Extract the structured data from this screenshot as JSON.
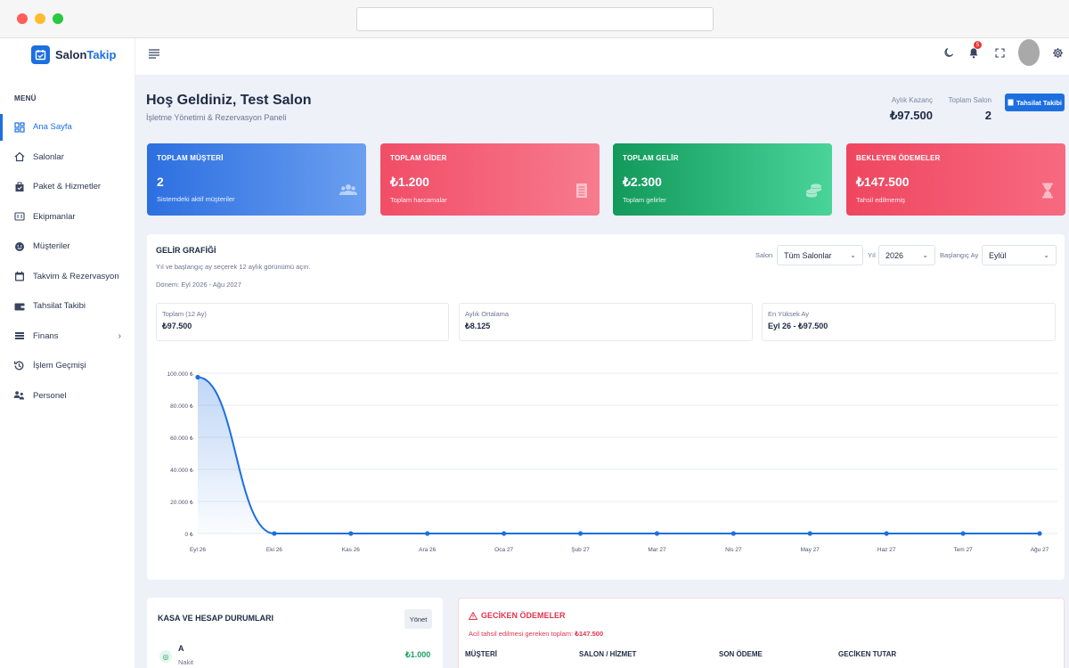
{
  "brand": {
    "name_a": "Salon",
    "name_b": "Takip"
  },
  "sidebar": {
    "heading": "MENÜ",
    "items": [
      {
        "label": "Ana Sayfa",
        "icon": "dashboard-icon",
        "active": true
      },
      {
        "label": "Salonlar",
        "icon": "home-icon"
      },
      {
        "label": "Paket & Hizmetler",
        "icon": "package-icon"
      },
      {
        "label": "Ekipmanlar",
        "icon": "equipment-icon"
      },
      {
        "label": "Müşteriler",
        "icon": "smile-icon"
      },
      {
        "label": "Takvim & Rezervasyon",
        "icon": "calendar-icon"
      },
      {
        "label": "Tahsilat Takibi",
        "icon": "wallet-icon"
      },
      {
        "label": "Finans",
        "icon": "finance-icon",
        "has_submenu": true
      },
      {
        "label": "İşlem Geçmişi",
        "icon": "history-icon"
      },
      {
        "label": "Personel",
        "icon": "users-icon"
      }
    ]
  },
  "topbar": {
    "notification_count": "5"
  },
  "header": {
    "title": "Hoş Geldiniz, Test Salon",
    "subtitle": "İşletme Yönetimi & Rezervasyon Paneli",
    "monthly_label": "Aylık Kazanç",
    "monthly_value": "₺97.500",
    "salons_label": "Toplam Salon",
    "salons_value": "2",
    "button_label": "Tahsilat Takibi"
  },
  "cards": [
    {
      "title": "TOPLAM MÜŞTERİ",
      "value": "2",
      "sub": "Sistemdeki aktif müşteriler",
      "icon": "users-icon"
    },
    {
      "title": "TOPLAM GİDER",
      "value": "₺1.200",
      "sub": "Toplam harcamalar",
      "icon": "receipt-icon"
    },
    {
      "title": "TOPLAM GELİR",
      "value": "₺2.300",
      "sub": "Toplam gelirler",
      "icon": "coins-icon"
    },
    {
      "title": "BEKLEYEN ÖDEMELER",
      "value": "₺147.500",
      "sub": "Tahsil edilmemiş",
      "icon": "hourglass-icon"
    }
  ],
  "income": {
    "title": "GELİR GRAFİĞİ",
    "subtitle": "Yıl ve başlangıç ay seçerek 12 aylık görünümü açın.",
    "range": "Dönem: Eyl 2026 - Ağu 2027",
    "filters": {
      "salon_label": "Salon",
      "salon_value": "Tüm Salonlar",
      "year_label": "Yıl",
      "year_value": "2026",
      "month_label": "Başlangıç Ay",
      "month_value": "Eylül"
    },
    "summary": [
      {
        "label": "Toplam (12 Ay)",
        "value": "₺97.500"
      },
      {
        "label": "Aylık Ortalama",
        "value": "₺8.125"
      },
      {
        "label": "En Yüksek Ay",
        "value": "Eyl 26 - ₺97.500"
      }
    ]
  },
  "chart_data": {
    "type": "area",
    "categories": [
      "Eyl 26",
      "Eki 26",
      "Kas 26",
      "Ara 26",
      "Oca 27",
      "Şub 27",
      "Mar 27",
      "Nis 27",
      "May 27",
      "Haz 27",
      "Tem 27",
      "Ağu 27"
    ],
    "values": [
      97500,
      0,
      0,
      0,
      0,
      0,
      0,
      0,
      0,
      0,
      0,
      0
    ],
    "ylim": [
      0,
      100000
    ],
    "yticks": [
      "0 ₺",
      "20.000 ₺",
      "40.000 ₺",
      "60.000 ₺",
      "80.000 ₺",
      "100.000 ₺"
    ],
    "grid": true,
    "color": "#1d6fe0"
  },
  "accounts": {
    "title": "KASA VE HESAP DURUMLARI",
    "manage_label": "Yönet",
    "items": [
      {
        "name": "A",
        "type": "Nakit",
        "amount": "₺1.000"
      }
    ]
  },
  "overdue": {
    "title": "GECİKEN ÖDEMELER",
    "sub_text": "Acil tahsil edilmesi gereken toplam:",
    "sub_amount": "₺147.500",
    "columns": [
      "MÜŞTERİ",
      "SALON / HİZMET",
      "SON ÖDEME",
      "GECİKEN TUTAR"
    ]
  },
  "colors": {
    "accent": "#1d6fe0",
    "danger": "#e0344f",
    "success": "#1aa260"
  }
}
